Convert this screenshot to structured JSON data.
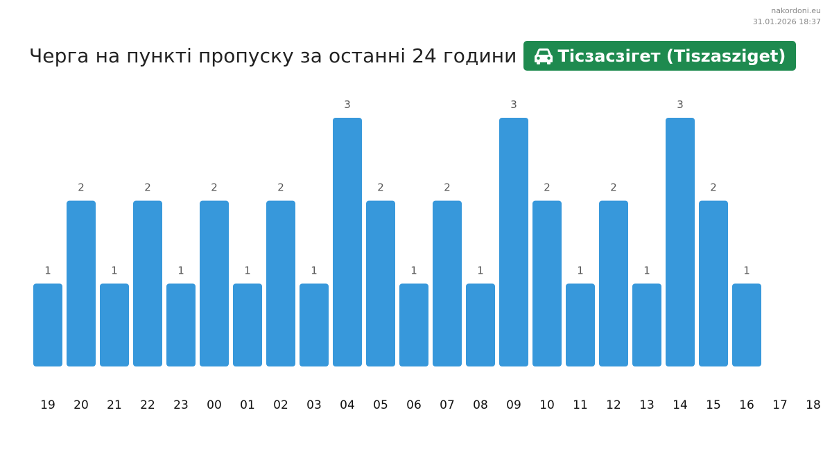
{
  "watermark": {
    "site": "nakordoni.eu",
    "timestamp": "31.01.2026 18:37"
  },
  "header": {
    "badge_label": "Тісзасзігет (Tiszasziget)",
    "badge_icon": "car-icon",
    "badge_color": "#1e8a4f"
  },
  "chart_data": {
    "type": "bar",
    "title": "Черга на пункті пропуску за останні 24 години",
    "categories": [
      "19",
      "20",
      "21",
      "22",
      "23",
      "00",
      "01",
      "02",
      "03",
      "04",
      "05",
      "06",
      "07",
      "08",
      "09",
      "10",
      "11",
      "12",
      "13",
      "14",
      "15",
      "16",
      "17",
      "18"
    ],
    "values": [
      1,
      2,
      1,
      2,
      1,
      2,
      1,
      2,
      1,
      3,
      2,
      1,
      2,
      1,
      3,
      2,
      1,
      2,
      1,
      3,
      2,
      1,
      null,
      null
    ],
    "data_labels": true,
    "ylim": [
      0,
      3
    ],
    "grid": false,
    "legend": "none",
    "bar_color": "#3798db"
  }
}
